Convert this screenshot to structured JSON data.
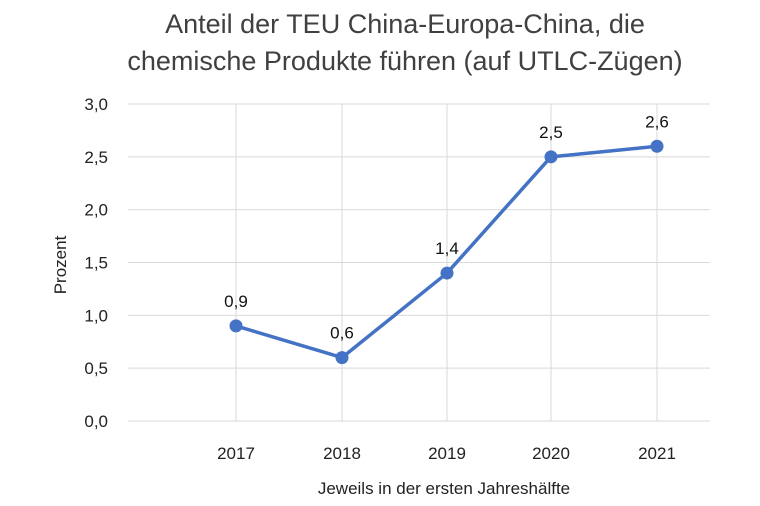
{
  "chart_data": {
    "type": "line",
    "title_lines": [
      "Anteil der TEU China-Europa-China, die",
      "chemische Produkte führen (auf UTLC-Zügen)"
    ],
    "xlabel": "Jeweils in der ersten Jahreshälfte",
    "ylabel": "Prozent",
    "categories": [
      "2017",
      "2018",
      "2019",
      "2020",
      "2021"
    ],
    "values": [
      0.9,
      0.6,
      1.4,
      2.5,
      2.6
    ],
    "data_labels": [
      "0,9",
      "0,6",
      "1,4",
      "2,5",
      "2,6"
    ],
    "yticks": [
      {
        "value": 0.0,
        "label": "0,0"
      },
      {
        "value": 0.5,
        "label": "0,5"
      },
      {
        "value": 1.0,
        "label": "1,0"
      },
      {
        "value": 1.5,
        "label": "1,5"
      },
      {
        "value": 2.0,
        "label": "2,0"
      },
      {
        "value": 2.5,
        "label": "2,5"
      },
      {
        "value": 3.0,
        "label": "3,0"
      }
    ],
    "ylim": [
      0,
      3.0
    ],
    "grid": true,
    "series_color": "#4472c4",
    "grid_color": "#d9d9d9"
  }
}
